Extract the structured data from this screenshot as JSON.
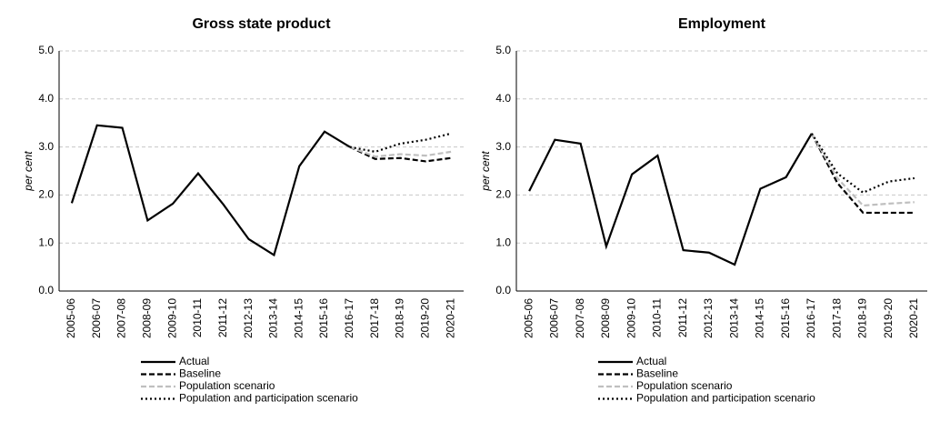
{
  "chart_data": [
    {
      "type": "line",
      "title": "Gross state product",
      "ylabel": "per cent",
      "categories": [
        "2005-06",
        "2006-07",
        "2007-08",
        "2008-09",
        "2009-10",
        "2010-11",
        "2011-12",
        "2012-13",
        "2013-14",
        "2014-15",
        "2015-16",
        "2016-17",
        "2017-18",
        "2018-19",
        "2019-20",
        "2020-21"
      ],
      "series": [
        {
          "name": "Actual",
          "color": "#000000",
          "style": "solid",
          "values": [
            1.83,
            3.45,
            3.4,
            1.47,
            1.82,
            2.45,
            1.8,
            1.08,
            0.75,
            2.6,
            3.32,
            3.0,
            null,
            null,
            null,
            null
          ]
        },
        {
          "name": "Baseline",
          "color": "#000000",
          "style": "dashed",
          "values": [
            null,
            null,
            null,
            null,
            null,
            null,
            null,
            null,
            null,
            null,
            null,
            3.0,
            2.75,
            2.77,
            2.7,
            2.77
          ]
        },
        {
          "name": "Population scenario",
          "color": "#bfbfbf",
          "style": "dashed",
          "values": [
            null,
            null,
            null,
            null,
            null,
            null,
            null,
            null,
            null,
            null,
            null,
            3.0,
            2.8,
            2.85,
            2.82,
            2.9
          ]
        },
        {
          "name": "Population and participation scenario",
          "color": "#000000",
          "style": "dotted",
          "values": [
            null,
            null,
            null,
            null,
            null,
            null,
            null,
            null,
            null,
            null,
            null,
            3.0,
            2.9,
            3.07,
            3.15,
            3.28
          ]
        }
      ],
      "ylim": [
        0,
        5
      ],
      "yticks": [
        {
          "value": 0,
          "label": "0.0"
        },
        {
          "value": 1,
          "label": "1.0"
        },
        {
          "value": 2,
          "label": "2.0"
        },
        {
          "value": 3,
          "label": "3.0"
        },
        {
          "value": 4,
          "label": "4.0"
        },
        {
          "value": 5,
          "label": "5.0"
        }
      ],
      "grid": true
    },
    {
      "type": "line",
      "title": "Employment",
      "ylabel": "per cent",
      "categories": [
        "2005-06",
        "2006-07",
        "2007-08",
        "2008-09",
        "2009-10",
        "2010-11",
        "2011-12",
        "2012-13",
        "2013-14",
        "2014-15",
        "2015-16",
        "2016-17",
        "2017-18",
        "2018-19",
        "2019-20",
        "2020-21"
      ],
      "series": [
        {
          "name": "Actual",
          "color": "#000000",
          "style": "solid",
          "values": [
            2.08,
            3.15,
            3.07,
            0.93,
            2.43,
            2.82,
            0.85,
            0.8,
            0.55,
            2.13,
            2.37,
            3.28,
            null,
            null,
            null,
            null
          ]
        },
        {
          "name": "Baseline",
          "color": "#000000",
          "style": "dashed",
          "values": [
            null,
            null,
            null,
            null,
            null,
            null,
            null,
            null,
            null,
            null,
            null,
            3.28,
            2.25,
            1.63,
            1.63,
            1.63
          ]
        },
        {
          "name": "Population scenario",
          "color": "#bfbfbf",
          "style": "dashed",
          "values": [
            null,
            null,
            null,
            null,
            null,
            null,
            null,
            null,
            null,
            null,
            null,
            3.28,
            2.35,
            1.78,
            1.82,
            1.85
          ]
        },
        {
          "name": "Population and participation scenario",
          "color": "#000000",
          "style": "dotted",
          "values": [
            null,
            null,
            null,
            null,
            null,
            null,
            null,
            null,
            null,
            null,
            null,
            3.28,
            2.45,
            2.05,
            2.28,
            2.35
          ]
        }
      ],
      "ylim": [
        0,
        5
      ],
      "yticks": [
        {
          "value": 0,
          "label": "0.0"
        },
        {
          "value": 1,
          "label": "1.0"
        },
        {
          "value": 2,
          "label": "2.0"
        },
        {
          "value": 3,
          "label": "3.0"
        },
        {
          "value": 4,
          "label": "4.0"
        },
        {
          "value": 5,
          "label": "5.0"
        }
      ],
      "grid": true
    }
  ]
}
